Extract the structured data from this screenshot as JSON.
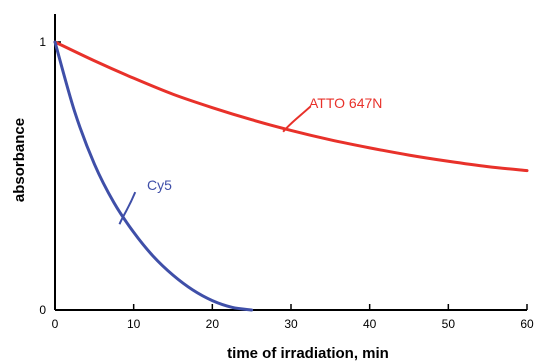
{
  "chart_data": {
    "type": "line",
    "xlabel": "time of irradiation, min",
    "ylabel": "absorbance",
    "xlim": [
      0,
      60
    ],
    "ylim": [
      0,
      1
    ],
    "x_ticks": [
      0,
      10,
      20,
      30,
      40,
      50,
      60
    ],
    "y_ticks": [
      0,
      1
    ],
    "grid": false,
    "series": [
      {
        "name": "ATTO 647N",
        "color": "#e8312a",
        "x": [
          0,
          5,
          10,
          15,
          20,
          25,
          30,
          35,
          40,
          45,
          50,
          55,
          60
        ],
        "y": [
          1.0,
          0.93,
          0.865,
          0.805,
          0.755,
          0.71,
          0.67,
          0.635,
          0.605,
          0.578,
          0.555,
          0.535,
          0.52
        ]
      },
      {
        "name": "Cy5",
        "color": "#3f4fa8",
        "x": [
          0,
          2.5,
          5,
          7.5,
          10,
          12.5,
          15,
          17.5,
          20,
          22.5,
          25
        ],
        "y": [
          1.0,
          0.74,
          0.545,
          0.4,
          0.29,
          0.2,
          0.13,
          0.075,
          0.035,
          0.01,
          0.0
        ]
      }
    ]
  }
}
